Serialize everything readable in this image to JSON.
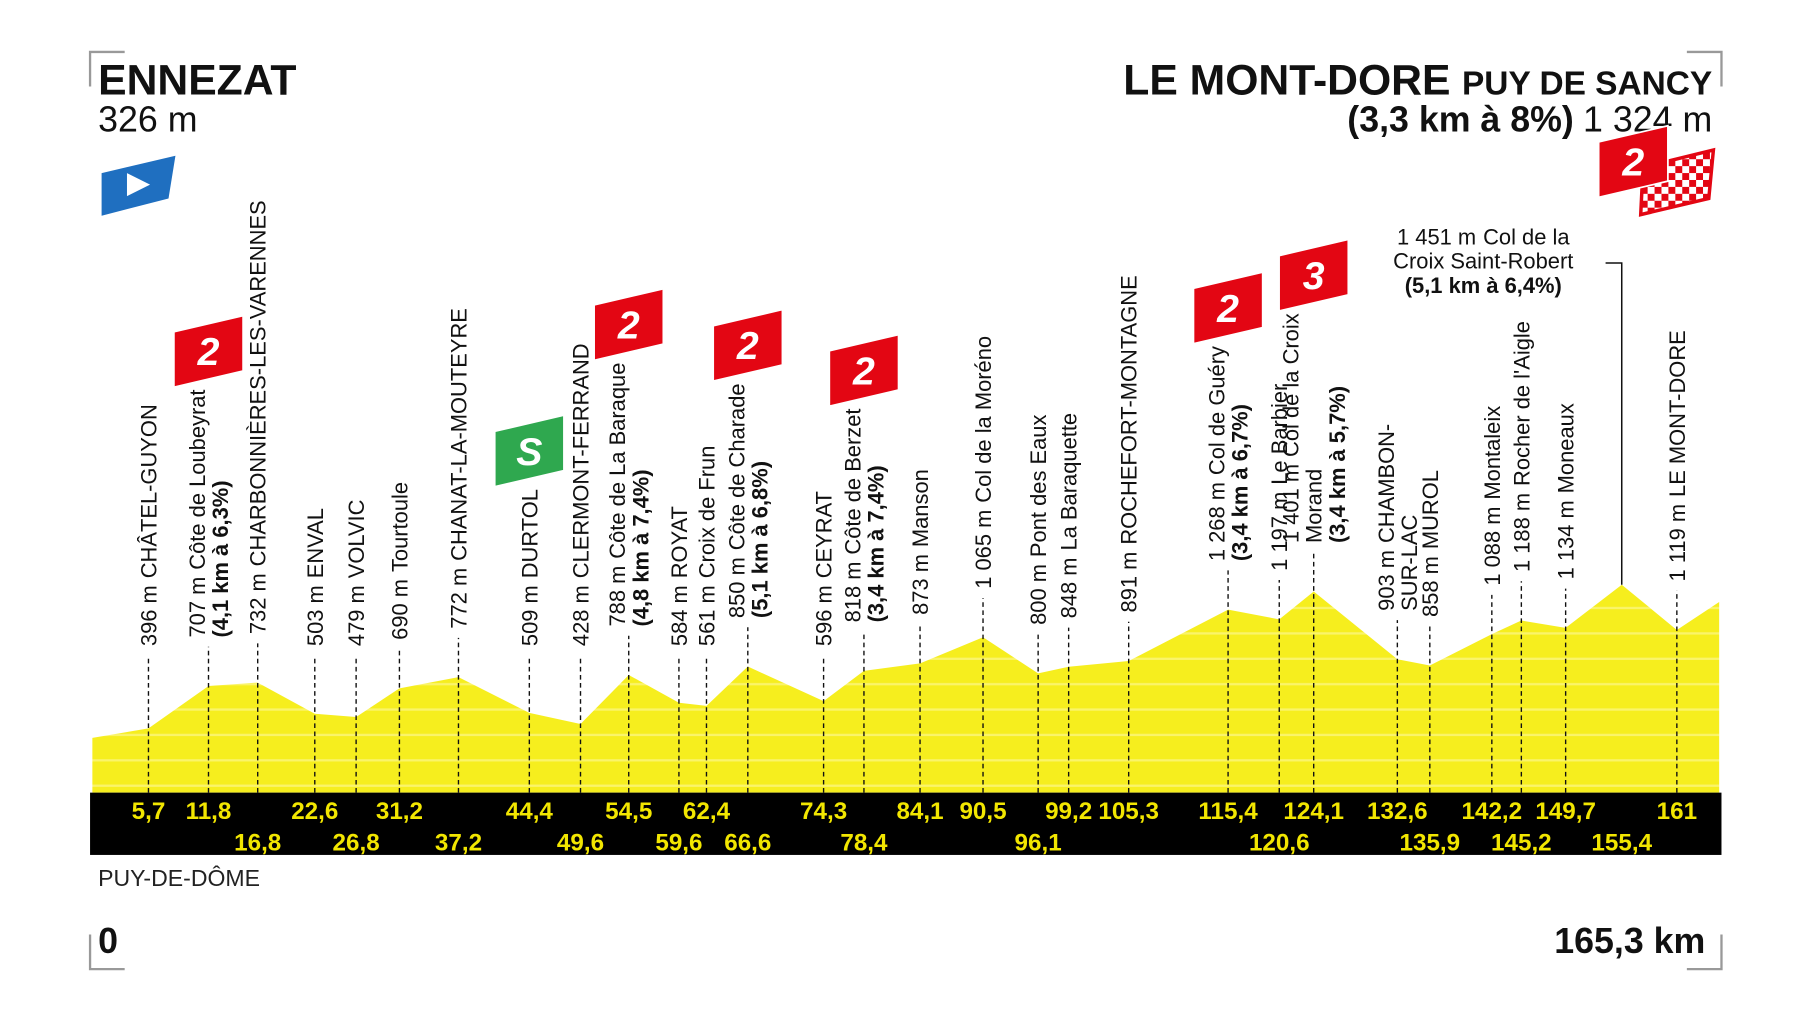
{
  "chart_data": {
    "type": "profile",
    "start": {
      "name": "ENNEZAT",
      "altitude": 326,
      "altitude_label": "326 m"
    },
    "finish": {
      "name": "LE MONT-DORE",
      "suffix": "PUY DE SANCY",
      "climb": "(3,3 km à 8%)",
      "altitude": 1324,
      "altitude_label": "1 324 m"
    },
    "region": "PUY-DE-DÔME",
    "xlim": [
      0,
      165.3
    ],
    "xticks": [
      {
        "value": 0,
        "label": "0"
      },
      {
        "value": 165.3,
        "label": "165,3 km"
      }
    ],
    "waypoints": [
      {
        "km": 5.7,
        "km_label": "5,7",
        "altitude": 396,
        "altitude_label": "396 m",
        "name_lines": [
          "CHÂTEL-GUYON"
        ]
      },
      {
        "km": 11.8,
        "km_label": "11,8",
        "altitude": 707,
        "altitude_label": "707 m",
        "name_lines": [
          "Côte de Loubeyrat"
        ],
        "climb": "(4,1 km à 6,3%)",
        "category": 2
      },
      {
        "km": 16.8,
        "km_label": "16,8",
        "altitude": 732,
        "altitude_label": "732 m",
        "name_lines": [
          "CHARBONNIÈRES-LES-VARENNES"
        ]
      },
      {
        "km": 22.6,
        "km_label": "22,6",
        "altitude": 503,
        "altitude_label": "503 m",
        "name_lines": [
          "ENVAL"
        ]
      },
      {
        "km": 26.8,
        "km_label": "26,8",
        "altitude": 479,
        "altitude_label": "479 m",
        "name_lines": [
          "VOLVIC"
        ]
      },
      {
        "km": 31.2,
        "km_label": "31,2",
        "altitude": 690,
        "altitude_label": "690 m",
        "name_lines": [
          "Tourtoule"
        ]
      },
      {
        "km": 37.2,
        "km_label": "37,2",
        "altitude": 772,
        "altitude_label": "772 m",
        "name_lines": [
          "CHANAT-LA-MOUTEYRE"
        ]
      },
      {
        "km": 44.4,
        "km_label": "44,4",
        "altitude": 509,
        "altitude_label": "509 m",
        "name_lines": [
          "DURTOL"
        ],
        "sprint": "S"
      },
      {
        "km": 49.6,
        "km_label": "49,6",
        "altitude": 428,
        "altitude_label": "428 m",
        "name_lines": [
          "CLERMONT-FERRAND"
        ]
      },
      {
        "km": 54.5,
        "km_label": "54,5",
        "altitude": 788,
        "altitude_label": "788 m",
        "name_lines": [
          "Côte de La Baraque"
        ],
        "climb": "(4,8 km à 7,4%)",
        "category": 2
      },
      {
        "km": 59.6,
        "km_label": "59,6",
        "altitude": 584,
        "altitude_label": "584 m",
        "name_lines": [
          "ROYAT"
        ]
      },
      {
        "km": 62.4,
        "km_label": "62,4",
        "altitude": 561,
        "altitude_label": "561 m",
        "name_lines": [
          "Croix de Frun"
        ]
      },
      {
        "km": 66.6,
        "km_label": "66,6",
        "altitude": 850,
        "altitude_label": "850 m",
        "name_lines": [
          "Côte de Charade"
        ],
        "climb": "(5,1 km à 6,8%)",
        "category": 2
      },
      {
        "km": 74.3,
        "km_label": "74,3",
        "altitude": 596,
        "altitude_label": "596 m",
        "name_lines": [
          "CEYRAT"
        ]
      },
      {
        "km": 78.4,
        "km_label": "78,4",
        "altitude": 818,
        "altitude_label": "818 m",
        "name_lines": [
          "Côte de Berzet"
        ],
        "climb": "(3,4 km à 7,4%)",
        "category": 2
      },
      {
        "km": 84.1,
        "km_label": "84,1",
        "altitude": 873,
        "altitude_label": "873 m",
        "name_lines": [
          "Manson"
        ]
      },
      {
        "km": 90.5,
        "km_label": "90,5",
        "altitude": 1065,
        "altitude_label": "1 065 m",
        "name_lines": [
          "Col de la Moréno"
        ]
      },
      {
        "km": 96.1,
        "km_label": "96,1",
        "altitude": 800,
        "altitude_label": "800 m",
        "name_lines": [
          "Pont des Eaux"
        ]
      },
      {
        "km": 99.2,
        "km_label": "99,2",
        "altitude": 848,
        "altitude_label": "848 m",
        "name_lines": [
          "La Baraquette"
        ]
      },
      {
        "km": 105.3,
        "km_label": "105,3",
        "altitude": 891,
        "altitude_label": "891 m",
        "name_lines": [
          "ROCHEFORT-MONTAGNE"
        ]
      },
      {
        "km": 115.4,
        "km_label": "115,4",
        "altitude": 1268,
        "altitude_label": "1 268 m",
        "name_lines": [
          "Col de Guéry"
        ],
        "climb": "(3,4 km à 6,7%)",
        "category": 2
      },
      {
        "km": 120.6,
        "km_label": "120,6",
        "altitude": 1197,
        "altitude_label": "1 197 m",
        "name_lines": [
          "Le Barbier"
        ]
      },
      {
        "km": 124.1,
        "km_label": "124,1",
        "altitude": 1401,
        "altitude_label": "1 401 m",
        "name_lines": [
          "Col de la Croix",
          "Morand"
        ],
        "climb": "(3,4 km à 5,7%)",
        "category": 3
      },
      {
        "km": 132.6,
        "km_label": "132,6",
        "altitude": 903,
        "altitude_label": "903 m",
        "name_lines": [
          "CHAMBON-",
          "SUR-LAC"
        ]
      },
      {
        "km": 135.9,
        "km_label": "135,9",
        "altitude": 858,
        "altitude_label": "858 m",
        "name_lines": [
          "MUROL"
        ]
      },
      {
        "km": 142.2,
        "km_label": "142,2",
        "altitude": 1088,
        "altitude_label": "1 088 m",
        "name_lines": [
          "Montaleix"
        ]
      },
      {
        "km": 145.2,
        "km_label": "145,2",
        "altitude": 1188,
        "altitude_label": "1 188 m",
        "name_lines": [
          "Rocher de l'Aigle"
        ]
      },
      {
        "km": 149.7,
        "km_label": "149,7",
        "altitude": 1134,
        "altitude_label": "1 134 m",
        "name_lines": [
          "Moneaux"
        ]
      },
      {
        "km": 155.4,
        "km_label": "155,4",
        "altitude": 1451,
        "altitude_label": "1 451 m",
        "name_lines": [
          "Col de la",
          "Croix Saint-Robert"
        ],
        "climb": "(5,1 km à 6,4%)",
        "category": 2,
        "orientation": "horizontal"
      },
      {
        "km": 161,
        "km_label": "161",
        "altitude": 1119,
        "altitude_label": "1 119 m",
        "name_lines": [
          "LE MONT-DORE"
        ]
      }
    ]
  }
}
